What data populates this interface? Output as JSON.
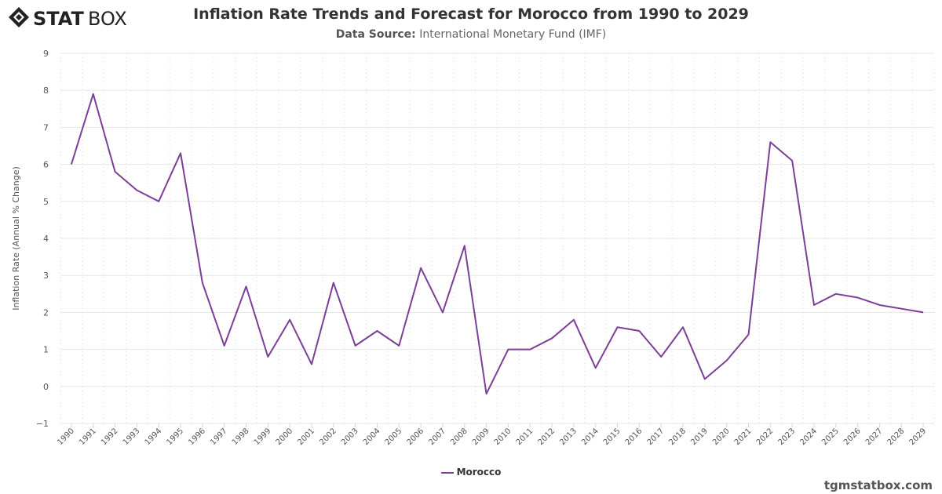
{
  "brand": {
    "logo_text": "STATBOX",
    "credit": "tgmstatbox.com"
  },
  "title": "Inflation Rate Trends and Forecast for Morocco from 1990 to 2029",
  "subtitle": {
    "label": "Data Source:",
    "value": "International Monetary Fund (IMF)"
  },
  "chart_data": {
    "type": "line",
    "title": "Inflation Rate Trends and Forecast for Morocco from 1990 to 2029",
    "xlabel": "",
    "ylabel": "Inflation Rate (Annual % Change)",
    "ylim": [
      -1,
      9
    ],
    "yticks": [
      -1,
      0,
      1,
      2,
      3,
      4,
      5,
      6,
      7,
      8,
      9
    ],
    "grid": true,
    "legend": "bottom-center",
    "categories": [
      "1990",
      "1991",
      "1992",
      "1993",
      "1994",
      "1995",
      "1996",
      "1997",
      "1998",
      "1999",
      "2000",
      "2001",
      "2002",
      "2003",
      "2004",
      "2005",
      "2006",
      "2007",
      "2008",
      "2009",
      "2010",
      "2011",
      "2012",
      "2013",
      "2014",
      "2015",
      "2016",
      "2017",
      "2018",
      "2019",
      "2020",
      "2021",
      "2022",
      "2023",
      "2024",
      "2025",
      "2026",
      "2027",
      "2028",
      "2029"
    ],
    "series": [
      {
        "name": "Morocco",
        "color": "#7b3f98",
        "values": [
          6.0,
          7.9,
          5.8,
          5.3,
          5.0,
          6.3,
          2.8,
          1.1,
          2.7,
          0.8,
          1.8,
          0.6,
          2.8,
          1.1,
          1.5,
          1.1,
          3.2,
          2.0,
          3.8,
          -0.2,
          1.0,
          1.0,
          1.3,
          1.8,
          0.5,
          1.6,
          1.5,
          0.8,
          1.6,
          0.2,
          0.7,
          1.4,
          6.6,
          6.1,
          2.2,
          2.5,
          2.4,
          2.2,
          2.1,
          2.0
        ]
      }
    ]
  }
}
